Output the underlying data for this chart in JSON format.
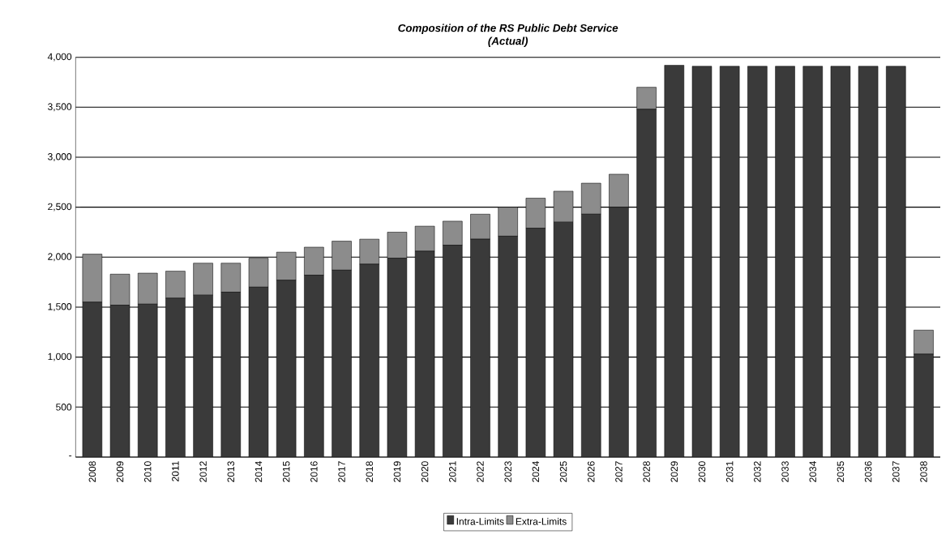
{
  "chart_data": {
    "type": "bar",
    "stacked": true,
    "title": "Composition of the RS Public Debt Service",
    "subtitle": "(Actual)",
    "categories": [
      "2008",
      "2009",
      "2010",
      "2011",
      "2012",
      "2013",
      "2014",
      "2015",
      "2016",
      "2017",
      "2018",
      "2019",
      "2020",
      "2021",
      "2022",
      "2023",
      "2024",
      "2025",
      "2026",
      "2027",
      "2028",
      "2029",
      "2030",
      "2031",
      "2032",
      "2033",
      "2034",
      "2035",
      "2036",
      "2037",
      "2038"
    ],
    "series": [
      {
        "name": "Intra-Limits",
        "color": "#3a3a3a",
        "values": [
          1550,
          1520,
          1530,
          1590,
          1620,
          1650,
          1700,
          1770,
          1820,
          1870,
          1930,
          1990,
          2060,
          2120,
          2180,
          2210,
          2290,
          2350,
          2430,
          2500,
          3480,
          3920,
          3910,
          3910,
          3910,
          3910,
          3910,
          3910,
          3910,
          3910,
          1030
        ]
      },
      {
        "name": "Extra-Limits",
        "color": "#8c8c8c",
        "values": [
          480,
          310,
          310,
          270,
          320,
          290,
          290,
          280,
          280,
          290,
          250,
          260,
          250,
          240,
          250,
          290,
          300,
          310,
          310,
          330,
          220,
          0,
          0,
          0,
          0,
          0,
          0,
          0,
          0,
          0,
          240
        ]
      }
    ],
    "ylim": [
      0,
      4000
    ],
    "yticks": [
      {
        "value": 0,
        "label": "-"
      },
      500,
      {
        "value": 1000,
        "label": "1,000"
      },
      {
        "value": 1500,
        "label": "1,500"
      },
      {
        "value": 2000,
        "label": "2,000"
      },
      {
        "value": 2500,
        "label": "2,500"
      },
      {
        "value": 3000,
        "label": "3,000"
      },
      {
        "value": 3500,
        "label": "3,500"
      },
      {
        "value": 4000,
        "label": "4,000"
      }
    ],
    "grid": "y",
    "legend": "bottom"
  }
}
